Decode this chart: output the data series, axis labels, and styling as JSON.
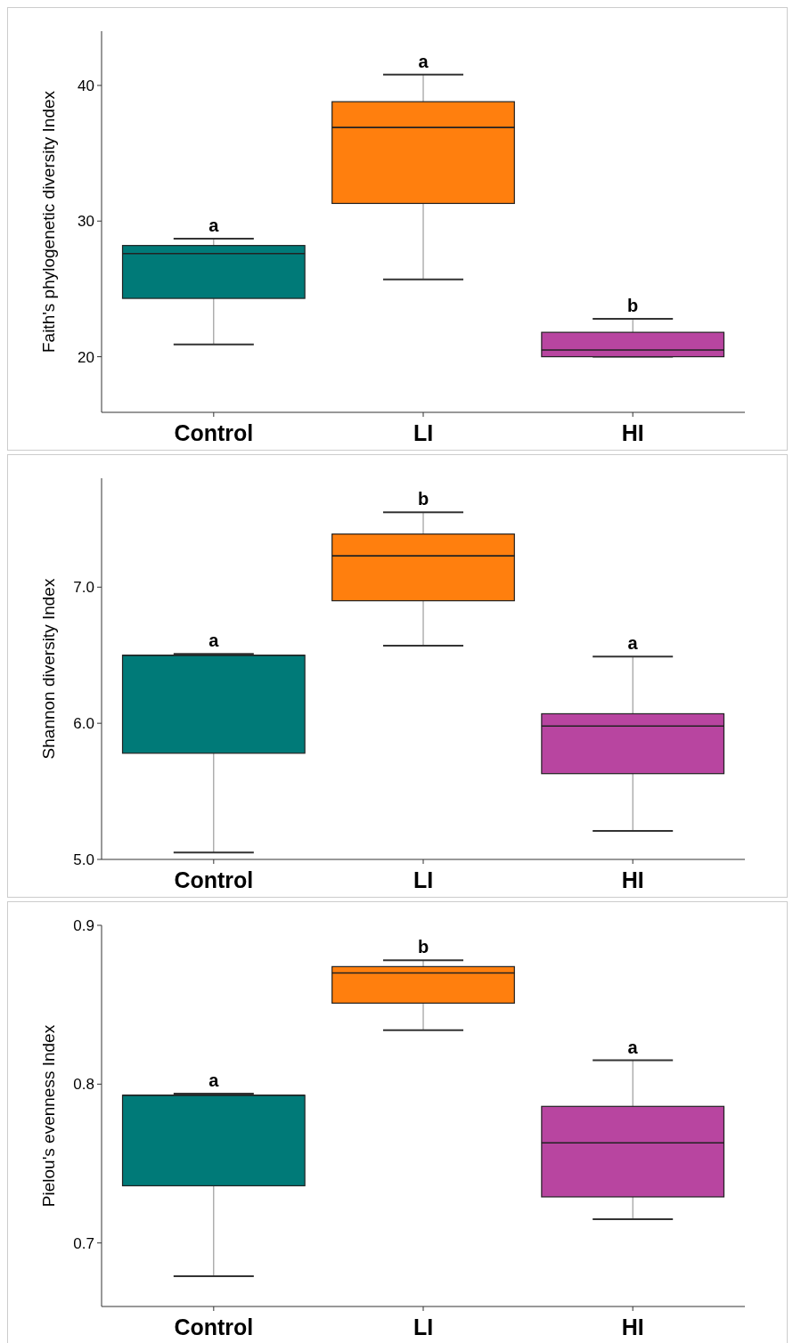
{
  "chart_data": [
    {
      "type": "box",
      "ylabel": "Faith's phylogenetic diversity Index",
      "categories": [
        "Control",
        "LI",
        "HI"
      ],
      "colors": [
        "#007a78",
        "#ff7f0e",
        "#b845a0"
      ],
      "ylim": [
        15.9,
        44
      ],
      "yticks": [
        20,
        30,
        40
      ],
      "boxes": [
        {
          "low": 20.9,
          "q1": 24.3,
          "median": 27.6,
          "q3": 28.2,
          "high": 28.7
        },
        {
          "low": 25.7,
          "q1": 31.3,
          "median": 36.9,
          "q3": 38.8,
          "high": 40.8
        },
        {
          "low": 20.0,
          "q1": 20.0,
          "median": 20.5,
          "q3": 21.8,
          "high": 22.8
        }
      ],
      "annotations": [
        {
          "text": "a",
          "x": "Control",
          "y": 28.7
        },
        {
          "text": "a",
          "x": "LI",
          "y": 40.8
        },
        {
          "text": "b",
          "x": "HI",
          "y": 22.8
        }
      ]
    },
    {
      "type": "box",
      "ylabel": "Shannon diversity Index",
      "categories": [
        "Control",
        "LI",
        "HI"
      ],
      "colors": [
        "#007a78",
        "#ff7f0e",
        "#b845a0"
      ],
      "ylim": [
        5.0,
        7.8
      ],
      "yticks": [
        {
          "value": 5,
          "label": "5.0"
        },
        {
          "value": 6,
          "label": "6.0"
        },
        {
          "value": 7,
          "label": "7.0"
        }
      ],
      "boxes": [
        {
          "low": 5.05,
          "q1": 5.78,
          "median": 6.5,
          "q3": 6.5,
          "high": 6.51
        },
        {
          "low": 6.57,
          "q1": 6.9,
          "median": 7.23,
          "q3": 7.39,
          "high": 7.55
        },
        {
          "low": 5.21,
          "q1": 5.63,
          "median": 5.98,
          "q3": 6.07,
          "high": 6.49
        }
      ],
      "annotations": [
        {
          "text": "a",
          "x": "Control",
          "y": 6.51
        },
        {
          "text": "b",
          "x": "LI",
          "y": 7.55
        },
        {
          "text": "a",
          "x": "HI",
          "y": 6.49
        }
      ]
    },
    {
      "type": "box",
      "ylabel": "Pielou's evenness Index",
      "categories": [
        "Control",
        "LI",
        "HI"
      ],
      "colors": [
        "#007a78",
        "#ff7f0e",
        "#b845a0"
      ],
      "ylim": [
        0.66,
        0.9
      ],
      "yticks": [
        0.7,
        0.8,
        0.9
      ],
      "boxes": [
        {
          "low": 0.679,
          "q1": 0.736,
          "median": 0.793,
          "q3": 0.793,
          "high": 0.794
        },
        {
          "low": 0.834,
          "q1": 0.851,
          "median": 0.87,
          "q3": 0.874,
          "high": 0.878
        },
        {
          "low": 0.715,
          "q1": 0.729,
          "median": 0.763,
          "q3": 0.786,
          "high": 0.815
        }
      ],
      "annotations": [
        {
          "text": "a",
          "x": "Control",
          "y": 0.794
        },
        {
          "text": "b",
          "x": "LI",
          "y": 0.878
        },
        {
          "text": "a",
          "x": "HI",
          "y": 0.815
        }
      ]
    }
  ]
}
